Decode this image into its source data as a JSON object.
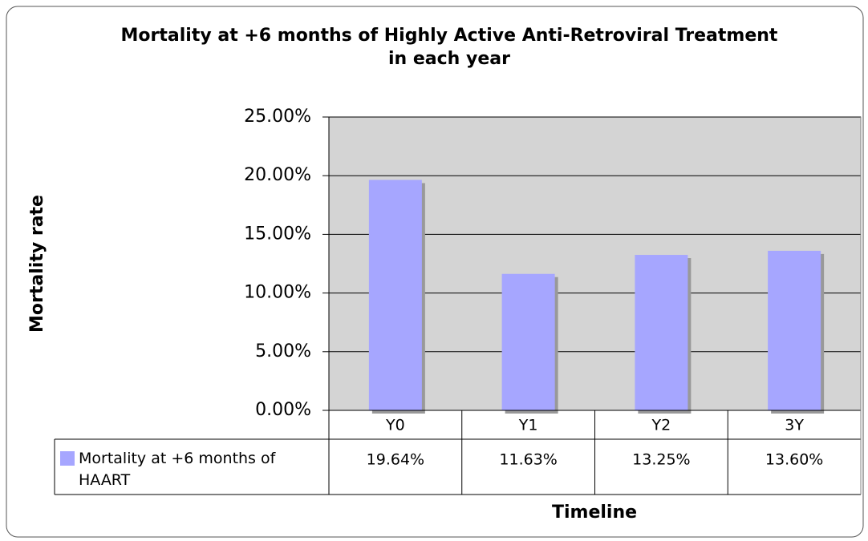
{
  "chart_data": {
    "type": "bar",
    "title": "Mortality at +6 months of Highly Active Anti-Retroviral Treatment in each year",
    "xlabel": "Timeline",
    "ylabel": "Mortality rate",
    "categories": [
      "Y0",
      "Y1",
      "Y2",
      "3Y"
    ],
    "series": [
      {
        "name": "Mortality at +6 months of HAART",
        "color": "#a6a6ff",
        "values": [
          19.64,
          11.63,
          13.25,
          13.6
        ],
        "value_labels": [
          "19.64%",
          "11.63%",
          "13.25%",
          "13.60%"
        ]
      }
    ],
    "ylim": [
      0,
      25
    ],
    "yticks": [
      {
        "value": 0,
        "label": "0.00%"
      },
      {
        "value": 5,
        "label": "5.00%"
      },
      {
        "value": 10,
        "label": "10.00%"
      },
      {
        "value": 15,
        "label": "15.00%"
      },
      {
        "value": 20,
        "label": "20.00%"
      },
      {
        "value": 25,
        "label": "25.00%"
      }
    ],
    "grid": true,
    "legend": "data-table"
  }
}
